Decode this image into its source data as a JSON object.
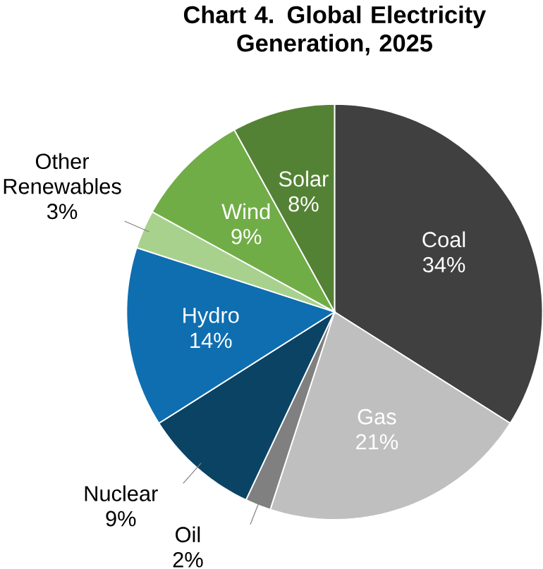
{
  "chart_data": {
    "type": "pie",
    "title": "Chart 4. Global Electricity Generation, 2025",
    "categories": [
      "Coal",
      "Gas",
      "Oil",
      "Nuclear",
      "Hydro",
      "Other Renewables",
      "Wind",
      "Solar"
    ],
    "values": [
      34,
      21,
      2,
      9,
      14,
      3,
      9,
      8
    ],
    "value_labels": [
      "34%",
      "21%",
      "2%",
      "9%",
      "14%",
      "3%",
      "9%",
      "8%"
    ],
    "colors": [
      "#404040",
      "#bfbfbf",
      "#808080",
      "#0b4365",
      "#0e6eb0",
      "#a9d18e",
      "#70ad47",
      "#548235"
    ]
  }
}
